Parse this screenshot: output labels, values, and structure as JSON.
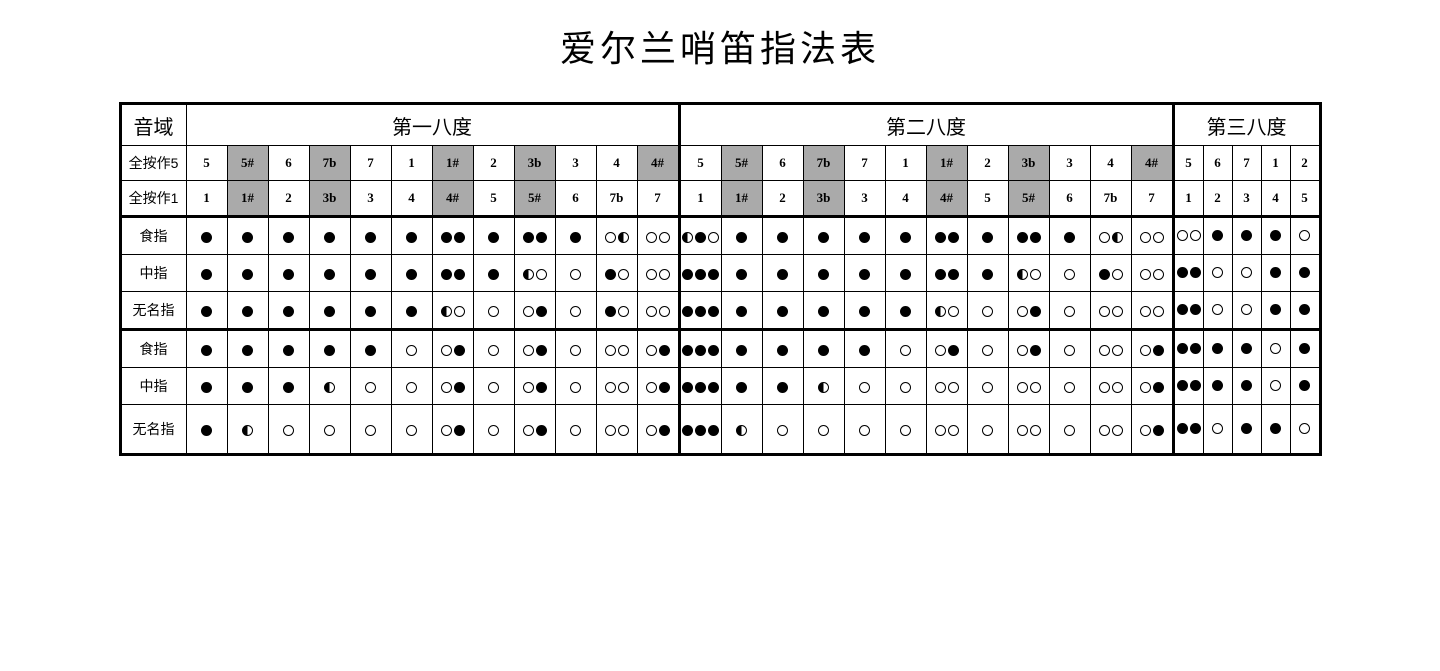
{
  "title": "爱尔兰哨笛指法表",
  "header_row_label": "音域",
  "octaves": [
    {
      "label": "第一八度",
      "span": 12
    },
    {
      "label": "第二八度",
      "span": 12
    },
    {
      "label": "第三八度",
      "span": 5
    }
  ],
  "note_rows": [
    {
      "label": "全按作5",
      "cells": [
        {
          "t": "5"
        },
        {
          "t": "5#",
          "s": 1
        },
        {
          "t": "6"
        },
        {
          "t": "7b",
          "s": 1
        },
        {
          "t": "7"
        },
        {
          "t": "1"
        },
        {
          "t": "1#",
          "s": 1
        },
        {
          "t": "2"
        },
        {
          "t": "3b",
          "s": 1
        },
        {
          "t": "3"
        },
        {
          "t": "4"
        },
        {
          "t": "4#",
          "s": 1
        },
        {
          "t": "5"
        },
        {
          "t": "5#",
          "s": 1
        },
        {
          "t": "6"
        },
        {
          "t": "7b",
          "s": 1
        },
        {
          "t": "7"
        },
        {
          "t": "1"
        },
        {
          "t": "1#",
          "s": 1
        },
        {
          "t": "2"
        },
        {
          "t": "3b",
          "s": 1
        },
        {
          "t": "3"
        },
        {
          "t": "4"
        },
        {
          "t": "4#",
          "s": 1
        },
        {
          "t": "5"
        },
        {
          "t": "6"
        },
        {
          "t": "7"
        },
        {
          "t": "1"
        },
        {
          "t": "2"
        }
      ]
    },
    {
      "label": "全按作1",
      "cells": [
        {
          "t": "1"
        },
        {
          "t": "1#",
          "s": 1
        },
        {
          "t": "2"
        },
        {
          "t": "3b",
          "s": 1
        },
        {
          "t": "3"
        },
        {
          "t": "4"
        },
        {
          "t": "4#",
          "s": 1
        },
        {
          "t": "5"
        },
        {
          "t": "5#",
          "s": 1
        },
        {
          "t": "6"
        },
        {
          "t": "7b"
        },
        {
          "t": "7"
        },
        {
          "t": "1"
        },
        {
          "t": "1#",
          "s": 1
        },
        {
          "t": "2"
        },
        {
          "t": "3b",
          "s": 1
        },
        {
          "t": "3"
        },
        {
          "t": "4"
        },
        {
          "t": "4#",
          "s": 1
        },
        {
          "t": "5"
        },
        {
          "t": "5#",
          "s": 1
        },
        {
          "t": "6"
        },
        {
          "t": "7b"
        },
        {
          "t": "7"
        },
        {
          "t": "1"
        },
        {
          "t": "2"
        },
        {
          "t": "3"
        },
        {
          "t": "4"
        },
        {
          "t": "5"
        }
      ]
    }
  ],
  "finger_groups": [
    {
      "rows": [
        {
          "label": "食指",
          "cells": [
            "c",
            "c",
            "c",
            "c",
            "c",
            "c",
            "cc",
            "c",
            "cc",
            "c",
            "oh",
            "oo",
            "hco",
            "c",
            "c",
            "c",
            "c",
            "c",
            "cc",
            "c",
            "cc",
            "c",
            "oh",
            "oo",
            "oo",
            "c",
            "c",
            "c",
            "o"
          ]
        },
        {
          "label": "中指",
          "cells": [
            "c",
            "c",
            "c",
            "c",
            "c",
            "c",
            "cc",
            "c",
            "ho",
            "o",
            "co",
            "oo",
            "ccc",
            "c",
            "c",
            "c",
            "c",
            "c",
            "cc",
            "c",
            "ho",
            "o",
            "co",
            "oo",
            "cc",
            "o",
            "o",
            "c",
            "c"
          ]
        },
        {
          "label": "无名指",
          "cells": [
            "c",
            "c",
            "c",
            "c",
            "c",
            "c",
            "ho",
            "o",
            "oc",
            "o",
            "co",
            "oo",
            "ccc",
            "c",
            "c",
            "c",
            "c",
            "c",
            "ho",
            "o",
            "oc",
            "o",
            "oo",
            "oo",
            "cc",
            "o",
            "o",
            "c",
            "c"
          ]
        }
      ]
    },
    {
      "rows": [
        {
          "label": "食指",
          "cells": [
            "c",
            "c",
            "c",
            "c",
            "c",
            "o",
            "oc",
            "o",
            "oc",
            "o",
            "oo",
            "oc",
            "ccc",
            "c",
            "c",
            "c",
            "c",
            "o",
            "oc",
            "o",
            "oc",
            "o",
            "oo",
            "oc",
            "cc",
            "c",
            "c",
            "o",
            "c"
          ]
        },
        {
          "label": "中指",
          "cells": [
            "c",
            "c",
            "c",
            "h",
            "o",
            "o",
            "oc",
            "o",
            "oc",
            "o",
            "oo",
            "oc",
            "ccc",
            "c",
            "c",
            "h",
            "o",
            "o",
            "oo",
            "o",
            "oo",
            "o",
            "oo",
            "oc",
            "cc",
            "c",
            "c",
            "o",
            "c"
          ]
        },
        {
          "label": "无名指",
          "tall": true,
          "cells": [
            "c",
            "h",
            "o",
            "o",
            "o",
            "o",
            "oc",
            "o",
            "oc",
            "o",
            "oo",
            "oc",
            "ccc",
            "h",
            "o",
            "o",
            "o",
            "o",
            "oo",
            "o",
            "oo",
            "o",
            "oo",
            "oc",
            "cc",
            "o",
            "c",
            "c",
            "o"
          ]
        }
      ]
    }
  ],
  "colors": {
    "shaded_bg": "#aaaaaa",
    "border": "#000000",
    "hole_fill": "#000000"
  },
  "legend": {
    "c": "closed",
    "o": "open",
    "h": "half"
  }
}
